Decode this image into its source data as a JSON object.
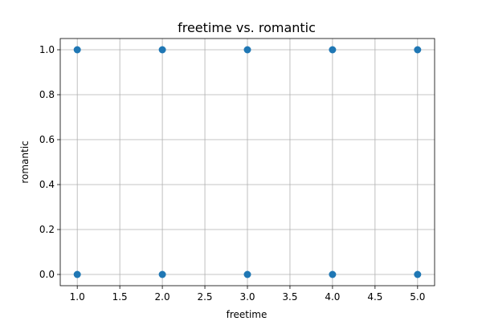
{
  "chart_data": {
    "type": "scatter",
    "title": "freetime vs. romantic",
    "xlabel": "freetime",
    "ylabel": "romantic",
    "xlim": [
      0.8,
      5.2
    ],
    "ylim": [
      -0.05,
      1.05
    ],
    "xticks": [
      "1.0",
      "1.5",
      "2.0",
      "2.5",
      "3.0",
      "3.5",
      "4.0",
      "4.5",
      "5.0"
    ],
    "yticks": [
      "0.0",
      "0.2",
      "0.4",
      "0.6",
      "0.8",
      "1.0"
    ],
    "grid": true,
    "marker_color": "#1f77b4",
    "points": [
      {
        "x": 1,
        "y": 1
      },
      {
        "x": 2,
        "y": 1
      },
      {
        "x": 3,
        "y": 1
      },
      {
        "x": 4,
        "y": 1
      },
      {
        "x": 5,
        "y": 1
      },
      {
        "x": 1,
        "y": 0
      },
      {
        "x": 2,
        "y": 0
      },
      {
        "x": 3,
        "y": 0
      },
      {
        "x": 4,
        "y": 0
      },
      {
        "x": 5,
        "y": 0
      }
    ]
  }
}
